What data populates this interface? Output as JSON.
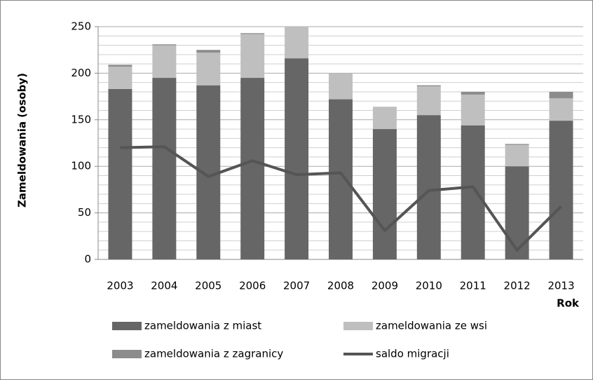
{
  "chart_data": {
    "type": "bar",
    "stacked": true,
    "ylabel": "Zameldowania (osoby)",
    "xlabel": "Rok",
    "categories": [
      "2003",
      "2004",
      "2005",
      "2006",
      "2007",
      "2008",
      "2009",
      "2010",
      "2011",
      "2012",
      "2013"
    ],
    "series": [
      {
        "name": "zameldowania z miast",
        "color": "#666666",
        "values": [
          183,
          195,
          187,
          195,
          216,
          172,
          140,
          155,
          144,
          100,
          149
        ]
      },
      {
        "name": "zameldowania ze wsi",
        "color": "#bfbfbf",
        "values": [
          24,
          35,
          35,
          47,
          34,
          28,
          24,
          31,
          33,
          23,
          24
        ]
      },
      {
        "name": "zameldowania z zagranicy",
        "color": "#8c8c8c",
        "values": [
          2,
          1,
          3,
          1,
          0,
          0,
          0,
          1,
          3,
          1,
          7
        ]
      },
      {
        "name": "saldo migracji",
        "color": "#555555",
        "type": "line",
        "values": [
          120,
          121,
          89,
          106,
          91,
          93,
          31,
          74,
          78,
          10,
          57
        ]
      }
    ],
    "ylim": [
      0,
      250
    ],
    "yticks": [
      0,
      50,
      100,
      150,
      200,
      250
    ],
    "minor_yticks": [
      10,
      20,
      30,
      40,
      60,
      70,
      80,
      90,
      110,
      120,
      130,
      140,
      160,
      170,
      180,
      190,
      210,
      220,
      230,
      240
    ],
    "grid": true
  }
}
